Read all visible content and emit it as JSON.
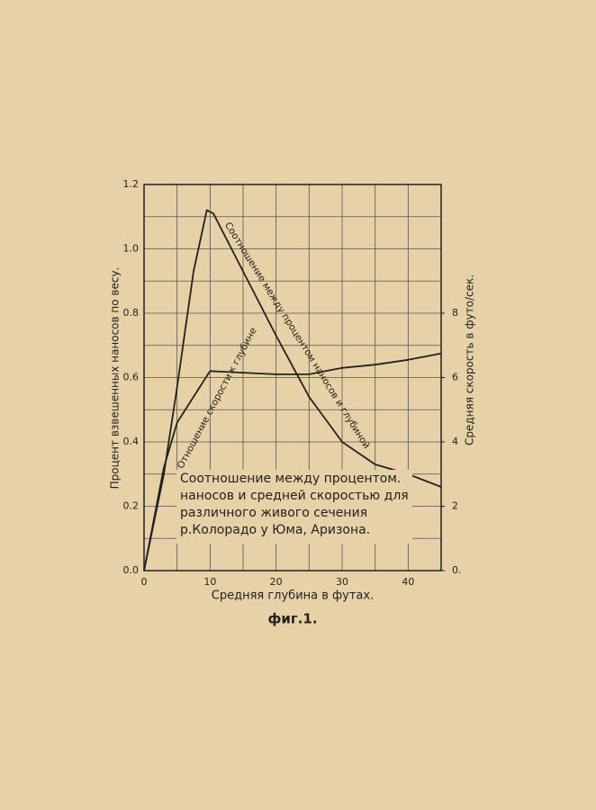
{
  "chart_data": {
    "type": "line",
    "x_label": "Средняя глубина в футах.",
    "y_label": "Процент взвешенных наносов по весу.",
    "y2_label": "Средняя скорость в футо/сек.",
    "caption": "фиг.1.",
    "annotation_lines": [
      "Соотношение между процентом.",
      "наносов и средней скоростью для",
      "различного живого сечения",
      "р.Колорадо у Юма, Аризона."
    ],
    "xlim": [
      0,
      45
    ],
    "xticks": [
      0,
      10,
      20,
      30,
      40
    ],
    "xminor": [
      5,
      15,
      25,
      35,
      45
    ],
    "ylim": [
      0,
      1.2
    ],
    "yticks": [
      {
        "value": 0,
        "label": "0.0"
      },
      0.2,
      0.4,
      0.6,
      0.8,
      {
        "value": 1,
        "label": "1.0"
      },
      1.2
    ],
    "yminor": [
      0.1,
      0.3,
      0.5,
      0.7,
      0.9,
      1.1
    ],
    "y2lim": [
      0,
      12
    ],
    "y2ticks": [
      {
        "value": 0,
        "label": "0."
      },
      2,
      4,
      6,
      8
    ],
    "grid": true,
    "series": [
      {
        "name": "Соотношение между процентом наносов и глубиной",
        "color": "#222",
        "x": [
          0,
          3,
          5,
          7.5,
          9.5,
          10.5,
          15,
          20,
          25,
          30,
          35,
          40,
          45
        ],
        "values": [
          0,
          0.3,
          0.57,
          0.93,
          1.12,
          1.11,
          0.93,
          0.73,
          0.54,
          0.4,
          0.33,
          0.3,
          0.26
        ]
      },
      {
        "name": "Отношение скорости к глубине",
        "color": "#222",
        "axis": "y2",
        "x": [
          0,
          3,
          5,
          7.5,
          10,
          15,
          20,
          25,
          30,
          35,
          40,
          45
        ],
        "values": [
          0,
          3.2,
          4.6,
          5.4,
          6.2,
          6.15,
          6.1,
          6.1,
          6.3,
          6.4,
          6.55,
          6.75
        ]
      }
    ]
  }
}
